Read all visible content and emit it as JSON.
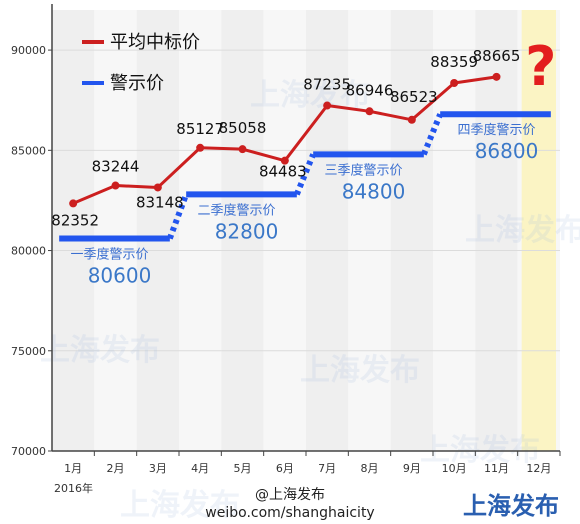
{
  "chart_data": {
    "type": "line",
    "categories": [
      "1月",
      "2月",
      "3月",
      "4月",
      "5月",
      "6月",
      "7月",
      "8月",
      "9月",
      "10月",
      "11月",
      "12月"
    ],
    "year_label": "2016年",
    "ylim": [
      70000,
      92000
    ],
    "yticks": [
      70000,
      75000,
      80000,
      85000,
      90000
    ],
    "series": [
      {
        "name": "平均中标价",
        "color": "#cc1f1f",
        "values": [
          82352,
          83244,
          83148,
          85127,
          85058,
          84483,
          87235,
          86946,
          86523,
          88359,
          88665,
          null
        ]
      },
      {
        "name": "警示价",
        "color": "#2255ee",
        "values": [
          80600,
          80600,
          80600,
          82800,
          82800,
          82800,
          84800,
          84800,
          84800,
          86800,
          86800,
          86800
        ]
      }
    ],
    "data_labels": [
      "82352",
      "83244",
      "83148",
      "85127",
      "85058",
      "84483",
      "87235",
      "86946",
      "86523",
      "88359",
      "88665"
    ],
    "quarter_labels": [
      {
        "label": "一季度警示价",
        "value": "80600"
      },
      {
        "label": "二季度警示价",
        "value": "82800"
      },
      {
        "label": "三季度警示价",
        "value": "84800"
      },
      {
        "label": "四季度警示价",
        "value": "86800"
      }
    ],
    "annotation": "?",
    "grid": true,
    "legend": "top-left"
  },
  "footer": {
    "weibo": "weibo.com/shanghaicity",
    "handle": "@上海发布",
    "brand": "上海发布",
    "watermark": "上海发布"
  }
}
